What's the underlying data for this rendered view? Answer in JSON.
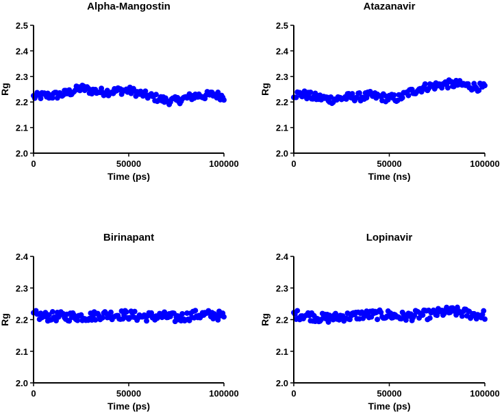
{
  "chart_data": [
    {
      "type": "scatter",
      "title": "Alpha-Mangostin",
      "xlabel": "Time (ps)",
      "ylabel": "Rg",
      "xlim": [
        0,
        100000
      ],
      "ylim": [
        2.0,
        2.5
      ],
      "x_ticks": [
        "0",
        "50000",
        "100000"
      ],
      "y_ticks": [
        "2.0",
        "2.1",
        "2.2",
        "2.3",
        "2.4",
        "2.5"
      ],
      "grid": false,
      "color": "#0000ff",
      "series": [
        {
          "x": [
            0,
            5000,
            10000,
            15000,
            20000,
            25000,
            30000,
            35000,
            40000,
            45000,
            50000,
            55000,
            60000,
            65000,
            70000,
            75000,
            80000,
            85000,
            90000,
            95000,
            100000
          ],
          "y": [
            2.22,
            2.225,
            2.225,
            2.23,
            2.24,
            2.255,
            2.245,
            2.24,
            2.24,
            2.245,
            2.245,
            2.235,
            2.225,
            2.215,
            2.205,
            2.205,
            2.215,
            2.225,
            2.225,
            2.23,
            2.22
          ],
          "spread": 0.015
        }
      ]
    },
    {
      "type": "scatter",
      "title": "Atazanavir",
      "xlabel": "Time (ns)",
      "ylabel": "Rg",
      "xlim": [
        0,
        100000
      ],
      "ylim": [
        2.0,
        2.5
      ],
      "x_ticks": [
        "0",
        "50000",
        "100000"
      ],
      "y_ticks": [
        "2.0",
        "2.1",
        "2.2",
        "2.3",
        "2.4",
        "2.5"
      ],
      "grid": false,
      "color": "#0000ff",
      "series": [
        {
          "x": [
            0,
            5000,
            10000,
            15000,
            20000,
            25000,
            30000,
            35000,
            40000,
            45000,
            50000,
            55000,
            60000,
            65000,
            70000,
            75000,
            80000,
            85000,
            90000,
            95000,
            100000
          ],
          "y": [
            2.23,
            2.23,
            2.22,
            2.215,
            2.21,
            2.215,
            2.22,
            2.22,
            2.225,
            2.22,
            2.215,
            2.215,
            2.235,
            2.25,
            2.26,
            2.265,
            2.27,
            2.27,
            2.265,
            2.26,
            2.255
          ],
          "spread": 0.016
        }
      ]
    },
    {
      "type": "scatter",
      "title": "Birinapant",
      "xlabel": "Time (ps)",
      "ylabel": "Rg",
      "xlim": [
        0,
        100000
      ],
      "ylim": [
        2.0,
        2.4
      ],
      "x_ticks": [
        "0",
        "50000",
        "100000"
      ],
      "y_ticks": [
        "2.0",
        "2.1",
        "2.2",
        "2.3",
        "2.4"
      ],
      "grid": false,
      "color": "#0000ff",
      "series": [
        {
          "x": [
            0,
            5000,
            10000,
            15000,
            20000,
            25000,
            30000,
            35000,
            40000,
            45000,
            50000,
            55000,
            60000,
            65000,
            70000,
            75000,
            80000,
            85000,
            90000,
            95000,
            100000
          ],
          "y": [
            2.215,
            2.21,
            2.21,
            2.21,
            2.21,
            2.21,
            2.21,
            2.215,
            2.215,
            2.215,
            2.215,
            2.21,
            2.21,
            2.21,
            2.21,
            2.205,
            2.21,
            2.215,
            2.215,
            2.215,
            2.21
          ],
          "spread": 0.015
        }
      ]
    },
    {
      "type": "scatter",
      "title": "Lopinavir",
      "xlabel": "Time (ps)",
      "ylabel": "Rg",
      "xlim": [
        0,
        100000
      ],
      "ylim": [
        2.0,
        2.4
      ],
      "x_ticks": [
        "0",
        "50000",
        "100000"
      ],
      "y_ticks": [
        "2.0",
        "2.1",
        "2.2",
        "2.3",
        "2.4"
      ],
      "grid": false,
      "color": "#0000ff",
      "series": [
        {
          "x": [
            0,
            5000,
            10000,
            15000,
            20000,
            25000,
            30000,
            35000,
            40000,
            45000,
            50000,
            55000,
            60000,
            65000,
            70000,
            75000,
            80000,
            85000,
            90000,
            95000,
            100000
          ],
          "y": [
            2.215,
            2.215,
            2.21,
            2.205,
            2.205,
            2.21,
            2.21,
            2.215,
            2.215,
            2.215,
            2.215,
            2.21,
            2.21,
            2.215,
            2.215,
            2.22,
            2.225,
            2.225,
            2.22,
            2.215,
            2.215
          ],
          "spread": 0.015
        }
      ]
    }
  ]
}
